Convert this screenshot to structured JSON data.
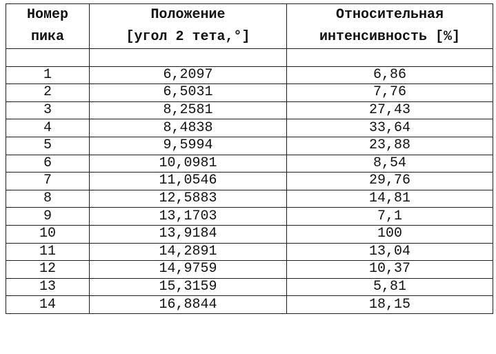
{
  "table": {
    "headers": [
      {
        "line1": "Номер",
        "line2": "пика"
      },
      {
        "line1": "Положение",
        "line2": "[угол 2 тета,°]"
      },
      {
        "line1": "Относительная",
        "line2": "интенсивность [%]"
      }
    ],
    "rows": [
      {
        "peak": "1",
        "position": "6,2097",
        "intensity": "6,86"
      },
      {
        "peak": "2",
        "position": "6,5031",
        "intensity": "7,76"
      },
      {
        "peak": "3",
        "position": "8,2581",
        "intensity": "27,43"
      },
      {
        "peak": "4",
        "position": "8,4838",
        "intensity": "33,64"
      },
      {
        "peak": "5",
        "position": "9,5994",
        "intensity": "23,88"
      },
      {
        "peak": "6",
        "position": "10,0981",
        "intensity": "8,54"
      },
      {
        "peak": "7",
        "position": "11,0546",
        "intensity": "29,76"
      },
      {
        "peak": "8",
        "position": "12,5883",
        "intensity": "14,81"
      },
      {
        "peak": "9",
        "position": "13,1703",
        "intensity": "7,1"
      },
      {
        "peak": "10",
        "position": "13,9184",
        "intensity": "100"
      },
      {
        "peak": "11",
        "position": "14,2891",
        "intensity": "13,04"
      },
      {
        "peak": "12",
        "position": "14,9759",
        "intensity": "10,37"
      },
      {
        "peak": "13",
        "position": "15,3159",
        "intensity": "5,81"
      },
      {
        "peak": "14",
        "position": "16,8844",
        "intensity": "18,15"
      }
    ]
  }
}
